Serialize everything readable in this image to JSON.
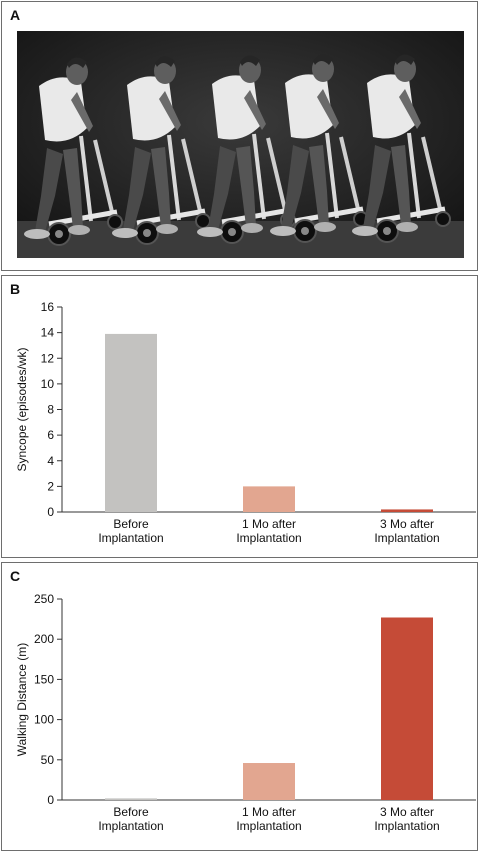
{
  "panels": {
    "a": {
      "letter": "A"
    },
    "b": {
      "letter": "B"
    },
    "c": {
      "letter": "C"
    }
  },
  "chart_data": [
    {
      "type": "bar",
      "panel": "B",
      "categories": [
        [
          "Before",
          "Implantation"
        ],
        [
          "1 Mo after",
          "Implantation"
        ],
        [
          "3 Mo after",
          "Implantation"
        ]
      ],
      "values": [
        13.9,
        2.0,
        0.2
      ],
      "colors": [
        "#c3c2c0",
        "#e2a690",
        "#c54b37"
      ],
      "xlabel": "",
      "ylabel": "Syncope (episodes/wk)",
      "ylim": [
        0,
        16
      ],
      "yticks": [
        0,
        2,
        4,
        6,
        8,
        10,
        12,
        14,
        16
      ],
      "grid": false
    },
    {
      "type": "bar",
      "panel": "C",
      "categories": [
        [
          "Before",
          "Implantation"
        ],
        [
          "1 Mo after",
          "Implantation"
        ],
        [
          "3 Mo after",
          "Implantation"
        ]
      ],
      "values": [
        2,
        46,
        227
      ],
      "colors": [
        "#c3c2c0",
        "#e2a690",
        "#c54b37"
      ],
      "xlabel": "",
      "ylabel": "Walking Distance (m)",
      "ylim": [
        0,
        250
      ],
      "yticks": [
        0,
        50,
        100,
        150,
        200,
        250
      ],
      "grid": false
    }
  ]
}
